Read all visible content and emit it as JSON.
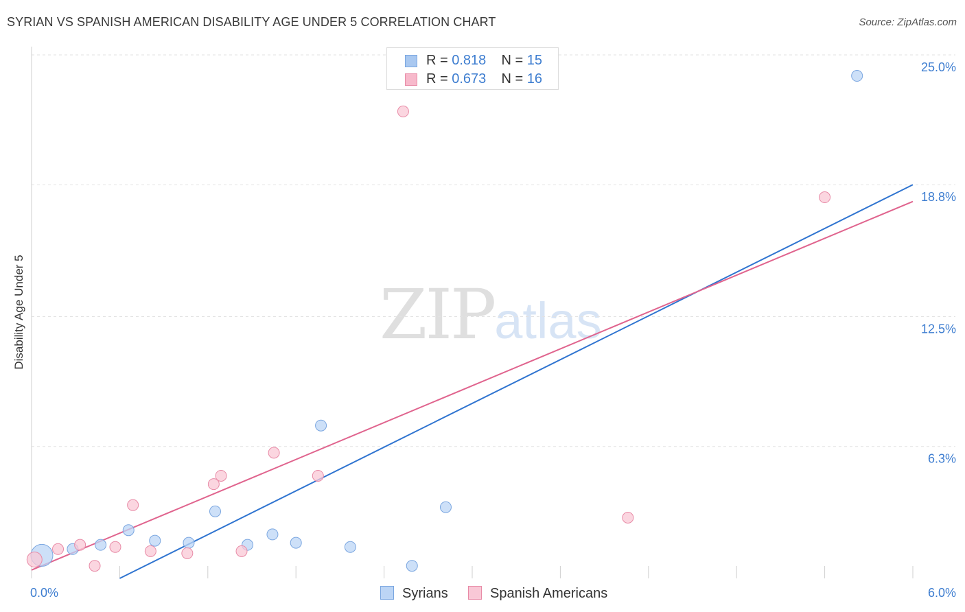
{
  "title": "SYRIAN VS SPANISH AMERICAN DISABILITY AGE UNDER 5 CORRELATION CHART",
  "source": "Source: ZipAtlas.com",
  "watermark": {
    "zip": "ZIP",
    "atlas": "atlas"
  },
  "stats": [
    {
      "r_label": "R = ",
      "r": "0.818",
      "n_label": "N = ",
      "n": "15",
      "color": "#a9c8f0",
      "border": "#7aa6e0"
    },
    {
      "r_label": "R = ",
      "r": "0.673",
      "n_label": "N = ",
      "n": "16",
      "color": "#f7b9cb",
      "border": "#e88aa6"
    }
  ],
  "legend": [
    {
      "label": "Syrians",
      "color": "#bcd5f5",
      "border": "#7aa6e0"
    },
    {
      "label": "Spanish Americans",
      "color": "#f9c8d6",
      "border": "#e88aa6"
    }
  ],
  "chart_data": {
    "type": "scatter",
    "title": "SYRIAN VS SPANISH AMERICAN DISABILITY AGE UNDER 5 CORRELATION CHART",
    "xlabel": "",
    "ylabel": "Disability Age Under 5",
    "xlim": [
      0,
      6
    ],
    "ylim": [
      0,
      25
    ],
    "x_tick_labels": [
      {
        "value": 0,
        "label": "0.0%"
      },
      {
        "value": 6,
        "label": "6.0%"
      }
    ],
    "y_tick_labels": [
      {
        "value": 6.3,
        "label": "6.3%"
      },
      {
        "value": 12.5,
        "label": "12.5%"
      },
      {
        "value": 18.8,
        "label": "18.8%"
      },
      {
        "value": 25.0,
        "label": "25.0%"
      }
    ],
    "grid": true,
    "series": [
      {
        "name": "Syrians",
        "color": "#4a86d6",
        "fill": "#bcd5f5",
        "stroke": "#7aa6e0",
        "points": [
          {
            "x": 0.07,
            "y": 1.1,
            "size": "large"
          },
          {
            "x": 0.28,
            "y": 1.4
          },
          {
            "x": 0.47,
            "y": 1.6
          },
          {
            "x": 0.66,
            "y": 2.3
          },
          {
            "x": 0.84,
            "y": 1.8
          },
          {
            "x": 1.07,
            "y": 1.7
          },
          {
            "x": 1.25,
            "y": 3.2
          },
          {
            "x": 1.47,
            "y": 1.6
          },
          {
            "x": 1.64,
            "y": 2.1
          },
          {
            "x": 1.8,
            "y": 1.7
          },
          {
            "x": 1.97,
            "y": 7.3
          },
          {
            "x": 2.17,
            "y": 1.5
          },
          {
            "x": 2.59,
            "y": 0.6
          },
          {
            "x": 2.82,
            "y": 3.4
          },
          {
            "x": 5.62,
            "y": 24.0
          }
        ],
        "trend": {
          "x1": 0.6,
          "y1": 0.0,
          "x2": 6.0,
          "y2": 18.8,
          "color": "#2f74d0"
        }
      },
      {
        "name": "Spanish Americans",
        "color": "#e7739a",
        "fill": "#f9c8d6",
        "stroke": "#e88aa6",
        "points": [
          {
            "x": 0.02,
            "y": 0.9,
            "size": "medium"
          },
          {
            "x": 0.18,
            "y": 1.4
          },
          {
            "x": 0.33,
            "y": 1.6
          },
          {
            "x": 0.43,
            "y": 0.6
          },
          {
            "x": 0.57,
            "y": 1.5
          },
          {
            "x": 0.69,
            "y": 3.5
          },
          {
            "x": 0.81,
            "y": 1.3
          },
          {
            "x": 1.06,
            "y": 1.2
          },
          {
            "x": 1.24,
            "y": 4.5
          },
          {
            "x": 1.29,
            "y": 4.9
          },
          {
            "x": 1.43,
            "y": 1.3
          },
          {
            "x": 1.65,
            "y": 6.0
          },
          {
            "x": 1.95,
            "y": 4.9
          },
          {
            "x": 2.53,
            "y": 22.3
          },
          {
            "x": 4.06,
            "y": 2.9
          },
          {
            "x": 5.4,
            "y": 18.2
          }
        ],
        "trend": {
          "x1": 0.0,
          "y1": 0.4,
          "x2": 6.0,
          "y2": 18.0,
          "color": "#e0648e"
        }
      }
    ]
  }
}
